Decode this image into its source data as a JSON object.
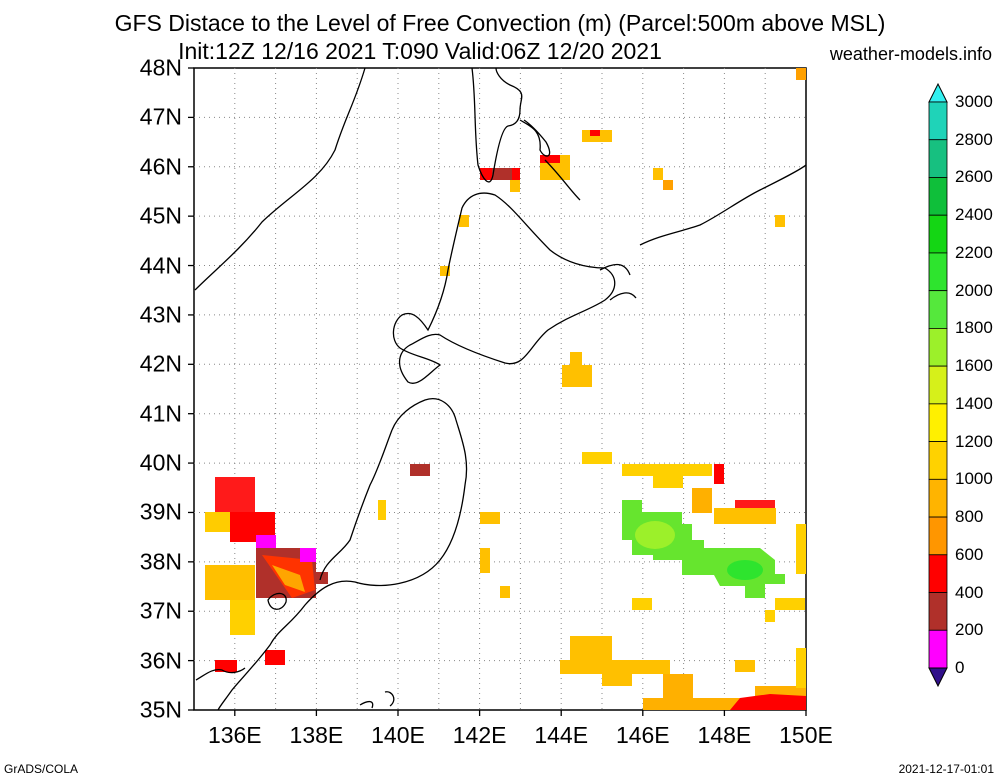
{
  "title_line1": "GFS Distace to the Level of Free Convection (m) (Parcel:500m above MSL)",
  "title_line2": "Init:12Z 12/16 2021 T:090 Valid:06Z 12/20 2021",
  "site": "weather-models.info",
  "credit": "GrADS/COLA",
  "timestamp": "2021-12-17-01:01",
  "map": {
    "lat_labels": [
      "48N",
      "47N",
      "46N",
      "45N",
      "44N",
      "43N",
      "42N",
      "41N",
      "40N",
      "39N",
      "38N",
      "37N",
      "36N",
      "35N"
    ],
    "lon_labels": [
      "136E",
      "138E",
      "140E",
      "142E",
      "144E",
      "146E",
      "148E",
      "150E"
    ],
    "lat_range": [
      35,
      48
    ],
    "lon_range": [
      135,
      150
    ],
    "grid": true
  },
  "colorbar": {
    "labels": [
      "3000",
      "2800",
      "2600",
      "2400",
      "2200",
      "2000",
      "1800",
      "1600",
      "1400",
      "1200",
      "1000",
      "800",
      "600",
      "400",
      "200",
      "0"
    ],
    "colors": [
      "#33f0f0",
      "#1fd3b8",
      "#17c080",
      "#0fbf3a",
      "#14d614",
      "#2ee42e",
      "#55e83c",
      "#9cf02a",
      "#d6f01a",
      "#fff000",
      "#ffd200",
      "#ffb400",
      "#ff9600",
      "#ff0000",
      "#b0302a",
      "#ff00ff",
      "#30108a"
    ]
  }
}
